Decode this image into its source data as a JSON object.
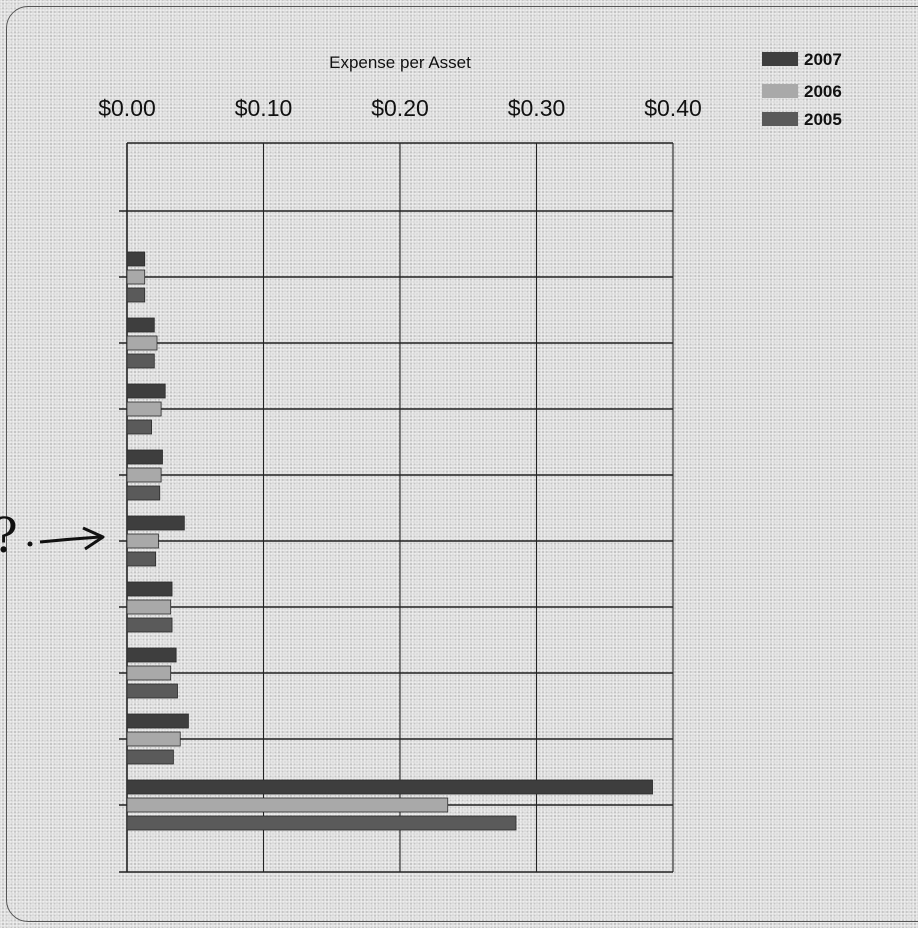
{
  "chart_data": {
    "type": "bar",
    "orientation": "horizontal",
    "title": "Expense per Asset",
    "xlabel": "",
    "ylabel": "",
    "xlim": [
      0,
      0.4
    ],
    "x_ticks": [
      "$0.00",
      "$0.10",
      "$0.20",
      "$0.30",
      "$0.40"
    ],
    "grid": true,
    "legend_position": "top-right",
    "categories": [
      "",
      "",
      "",
      "",
      "",
      "",
      "",
      "",
      "",
      ""
    ],
    "series": [
      {
        "name": "2007",
        "color": "#3e3e3e",
        "values": [
          null,
          0.013,
          0.02,
          0.028,
          0.026,
          0.042,
          0.033,
          0.036,
          0.045,
          0.385
        ]
      },
      {
        "name": "2006",
        "color": "#a9a9a9",
        "values": [
          null,
          0.013,
          0.022,
          0.025,
          0.025,
          0.023,
          0.032,
          0.032,
          0.039,
          0.235
        ]
      },
      {
        "name": "2005",
        "color": "#5a5a5a",
        "values": [
          null,
          0.013,
          0.02,
          0.018,
          0.024,
          0.021,
          0.033,
          0.037,
          0.034,
          0.285
        ]
      }
    ],
    "annotation": {
      "text": "?",
      "type": "handwritten-arrow"
    }
  }
}
